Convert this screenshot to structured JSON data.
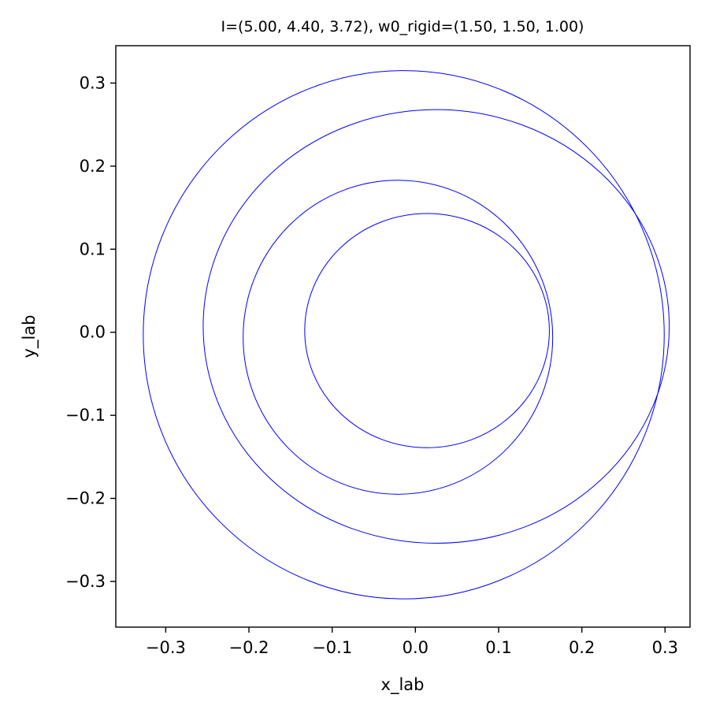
{
  "chart_data": {
    "type": "line",
    "title": "I=(5.00, 4.40, 3.72), w0_rigid=(1.50, 1.50, 1.00)",
    "xlabel": "x_lab",
    "ylabel": "y_lab",
    "xlim": [
      -0.36,
      0.33
    ],
    "ylim": [
      -0.355,
      0.345
    ],
    "xticks": [
      -0.3,
      -0.2,
      -0.1,
      0.0,
      0.1,
      0.2,
      0.3
    ],
    "xtick_labels": [
      "−0.3",
      "−0.2",
      "−0.1",
      "0.0",
      "0.1",
      "0.2",
      "0.3"
    ],
    "yticks": [
      -0.3,
      -0.2,
      -0.1,
      0.0,
      0.1,
      0.2,
      0.3
    ],
    "ytick_labels": [
      "−0.3",
      "−0.2",
      "−0.1",
      "0.0",
      "0.1",
      "0.2",
      "0.3"
    ],
    "grid": false,
    "line_color": "#0000ff",
    "series": [
      {
        "cx": -0.014,
        "cy": -0.003,
        "rx": 0.313,
        "ry": 0.318
      },
      {
        "cx": 0.025,
        "cy": 0.007,
        "rx": 0.28,
        "ry": 0.261
      },
      {
        "cx": -0.021,
        "cy": -0.006,
        "rx": 0.186,
        "ry": 0.189
      },
      {
        "cx": 0.014,
        "cy": 0.002,
        "rx": 0.147,
        "ry": 0.141
      }
    ]
  }
}
